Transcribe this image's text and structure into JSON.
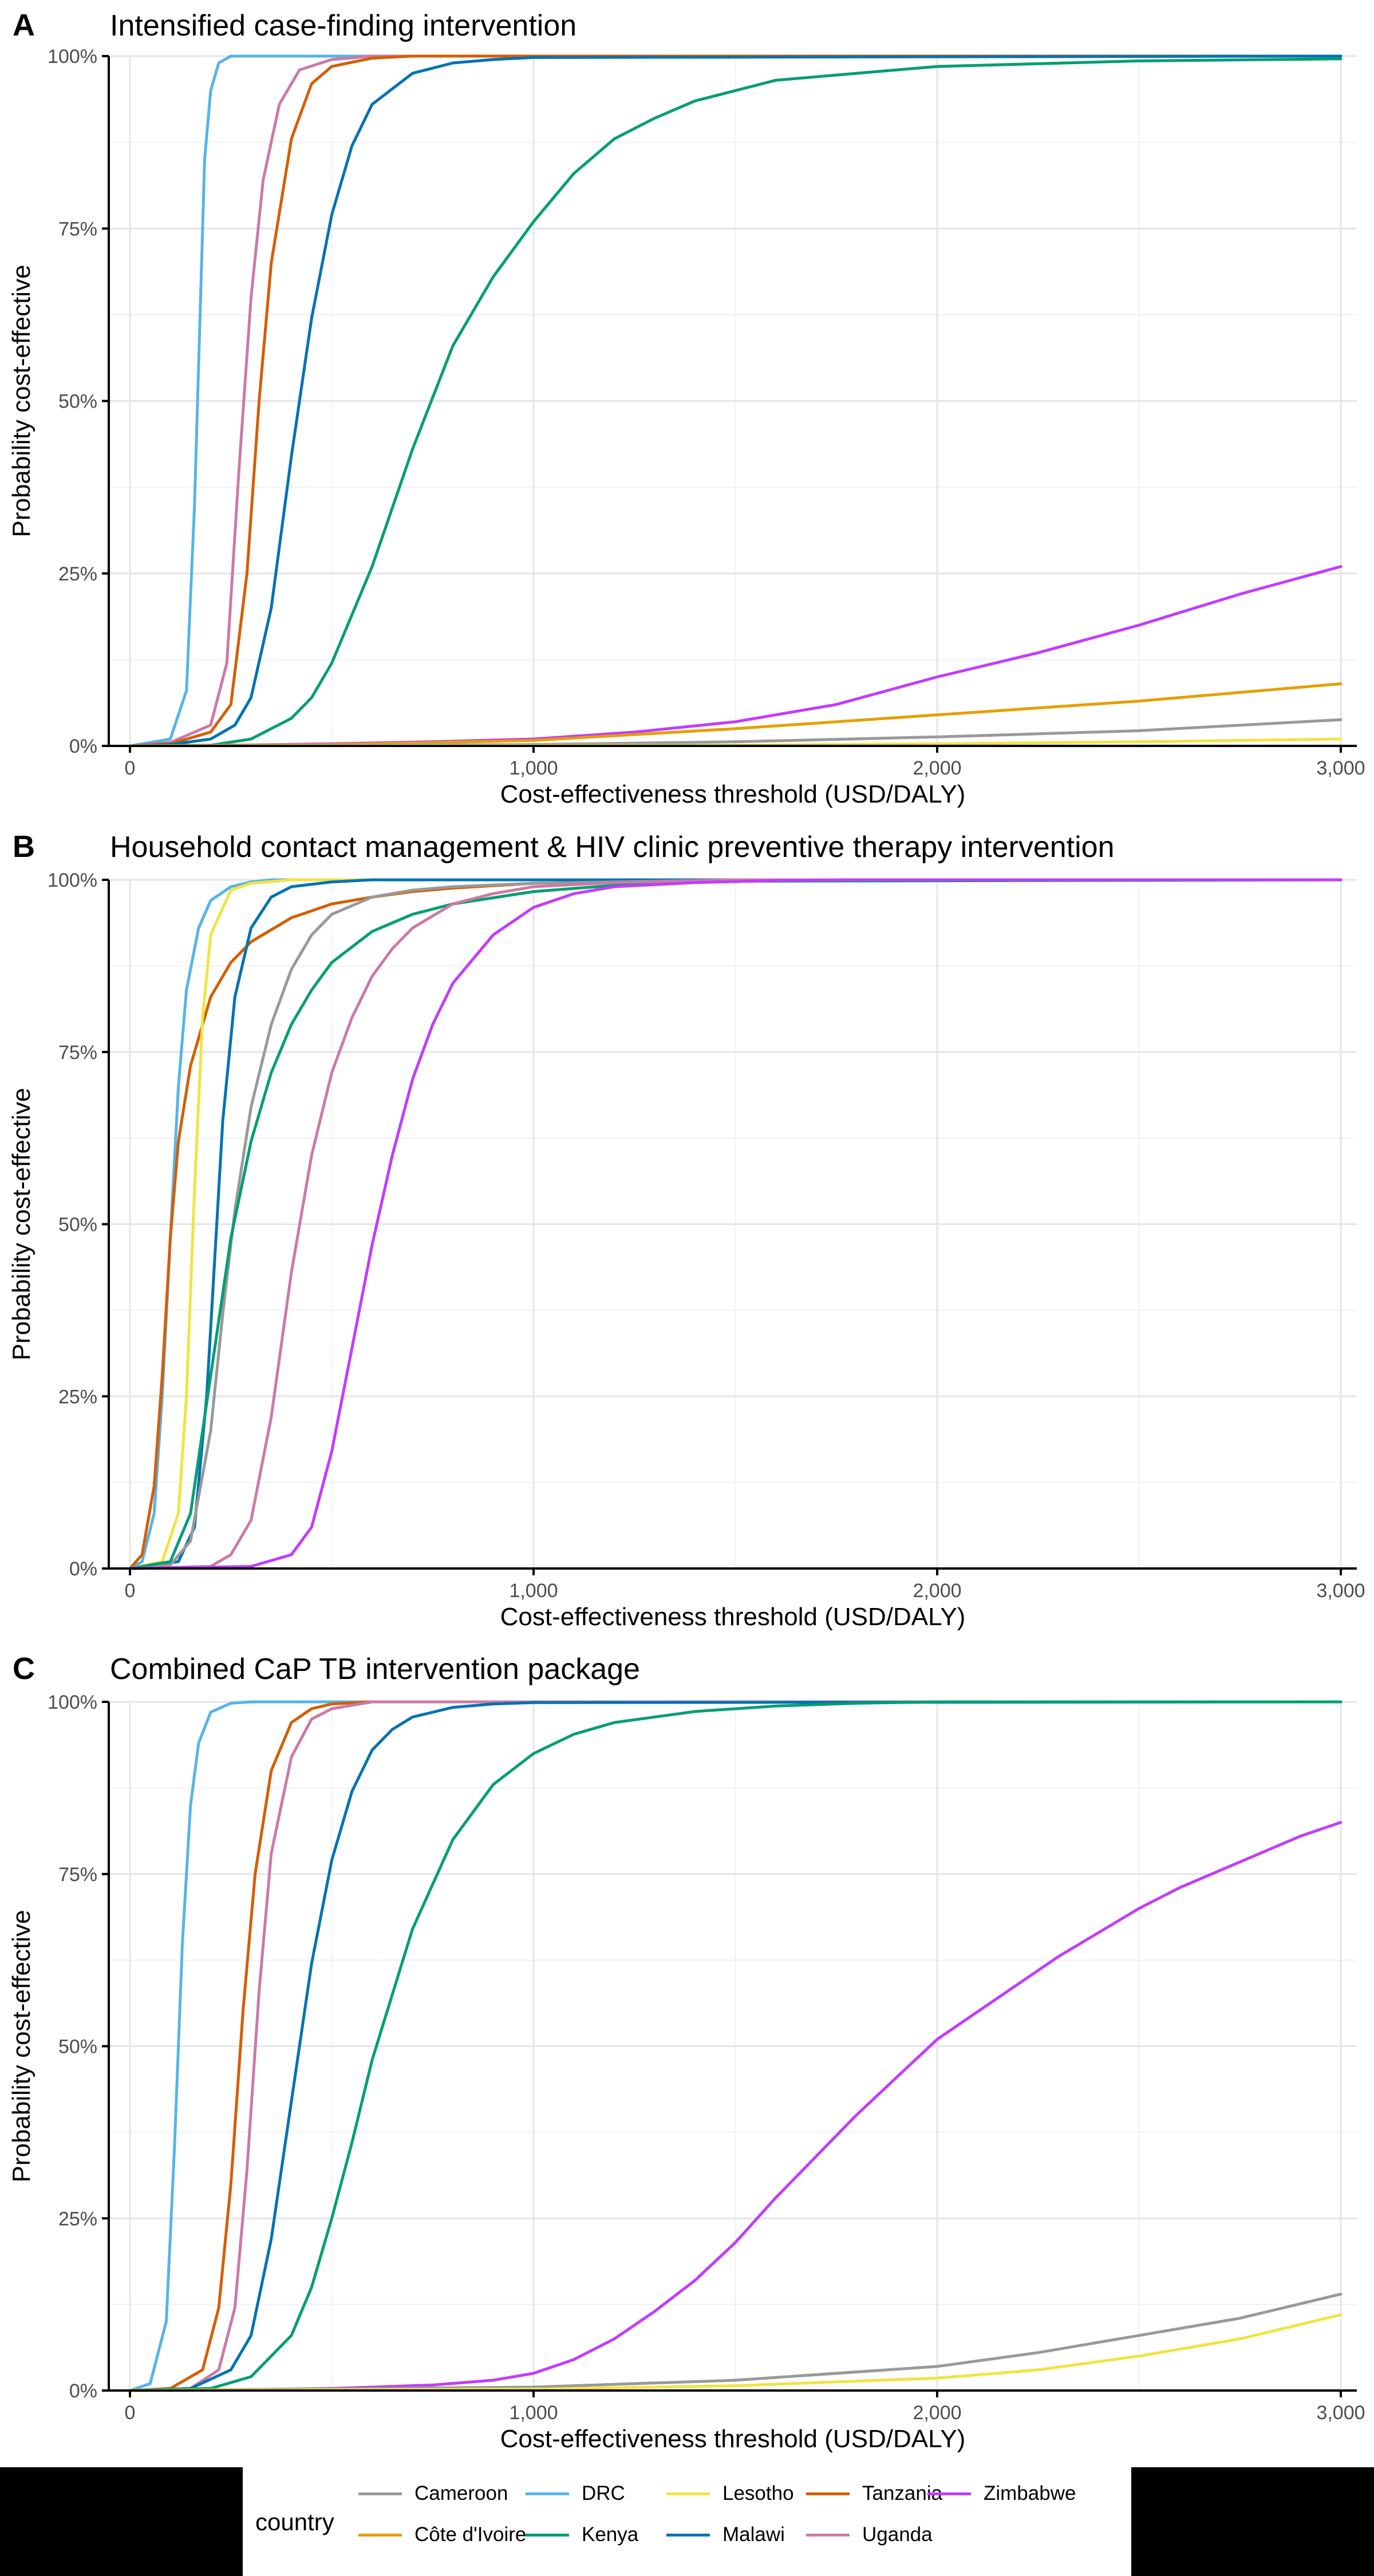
{
  "colors": {
    "Cameroon": "#999999",
    "Côte d'Ivoire": "#E69F00",
    "DRC": "#56B4E9",
    "Kenya": "#009E73",
    "Lesotho": "#F0E442",
    "Malawi": "#0072B2",
    "Tanzania": "#D55E00",
    "Uganda": "#CC79A7",
    "Zimbabwe": "#C23BFF"
  },
  "legend": {
    "title": "country",
    "entries": [
      "Cameroon",
      "Côte d'Ivoire",
      "DRC",
      "Kenya",
      "Lesotho",
      "Malawi",
      "Tanzania",
      "Uganda",
      "Zimbabwe"
    ]
  },
  "chart_data": [
    {
      "type": "line",
      "panel": "A",
      "title": "Intensified case-finding intervention",
      "xlabel": "Cost-effectiveness threshold (USD/DALY)",
      "ylabel": "Probability cost-effective",
      "xlim": [
        0,
        3000
      ],
      "ylim": [
        0,
        100
      ],
      "xticks": [
        0,
        1000,
        2000,
        3000
      ],
      "xtick_labels": [
        "0",
        "1,000",
        "2,000",
        "3,000"
      ],
      "yticks": [
        0,
        25,
        50,
        75,
        100
      ],
      "ytick_labels": [
        "0%",
        "25%",
        "50%",
        "75%",
        "100%"
      ],
      "grid": true,
      "series": [
        {
          "name": "DRC",
          "x": [
            0,
            100,
            140,
            160,
            175,
            185,
            200,
            220,
            250,
            300,
            3000
          ],
          "values": [
            0,
            1,
            8,
            35,
            65,
            85,
            95,
            99,
            100,
            100,
            100
          ]
        },
        {
          "name": "Uganda",
          "x": [
            0,
            100,
            200,
            240,
            270,
            300,
            330,
            370,
            420,
            500,
            600,
            3000
          ],
          "values": [
            0,
            0.5,
            3,
            12,
            40,
            65,
            82,
            93,
            98,
            99.5,
            100,
            100
          ]
        },
        {
          "name": "Tanzania",
          "x": [
            0,
            100,
            200,
            250,
            290,
            320,
            350,
            400,
            450,
            500,
            600,
            700,
            3000
          ],
          "values": [
            0,
            0.3,
            2,
            6,
            25,
            50,
            70,
            88,
            96,
            98.5,
            99.7,
            100,
            100
          ]
        },
        {
          "name": "Malawi",
          "x": [
            0,
            100,
            200,
            260,
            300,
            350,
            400,
            450,
            500,
            550,
            600,
            700,
            800,
            900,
            1000,
            3000
          ],
          "values": [
            0,
            0.2,
            1,
            3,
            7,
            20,
            42,
            62,
            77,
            87,
            93,
            97.5,
            99,
            99.5,
            99.8,
            100
          ]
        },
        {
          "name": "Kenya",
          "x": [
            0,
            200,
            300,
            400,
            450,
            500,
            600,
            700,
            800,
            900,
            1000,
            1100,
            1200,
            1300,
            1400,
            1500,
            1600,
            1800,
            2000,
            2500,
            3000
          ],
          "values": [
            0,
            0.1,
            1,
            4,
            7,
            12,
            26,
            43,
            58,
            68,
            76,
            83,
            88,
            91,
            93.5,
            95,
            96.5,
            97.5,
            98.5,
            99.3,
            99.6
          ]
        },
        {
          "name": "Zimbabwe",
          "x": [
            0,
            250,
            500,
            750,
            1000,
            1250,
            1500,
            1750,
            2000,
            2250,
            2500,
            2750,
            3000
          ],
          "values": [
            0,
            0.1,
            0.3,
            0.6,
            1,
            2,
            3.5,
            6,
            10,
            13.5,
            17.5,
            22,
            26
          ]
        },
        {
          "name": "Côte d'Ivoire",
          "x": [
            0,
            500,
            1000,
            1500,
            2000,
            2500,
            3000
          ],
          "values": [
            0,
            0.2,
            0.8,
            2.5,
            4.5,
            6.5,
            9
          ]
        },
        {
          "name": "Cameroon",
          "x": [
            0,
            1000,
            1500,
            2000,
            2500,
            3000
          ],
          "values": [
            0,
            0.2,
            0.6,
            1.3,
            2.2,
            3.8
          ]
        },
        {
          "name": "Lesotho",
          "x": [
            0,
            1500,
            2000,
            2500,
            3000
          ],
          "values": [
            0,
            0.1,
            0.3,
            0.6,
            1
          ]
        }
      ]
    },
    {
      "type": "line",
      "panel": "B",
      "title": "Household contact management & HIV clinic preventive therapy intervention",
      "xlabel": "Cost-effectiveness threshold (USD/DALY)",
      "ylabel": "Probability cost-effective",
      "xlim": [
        0,
        3000
      ],
      "ylim": [
        0,
        100
      ],
      "xticks": [
        0,
        1000,
        2000,
        3000
      ],
      "xtick_labels": [
        "0",
        "1,000",
        "2,000",
        "3,000"
      ],
      "yticks": [
        0,
        25,
        50,
        75,
        100
      ],
      "ytick_labels": [
        "0%",
        "25%",
        "50%",
        "75%",
        "100%"
      ],
      "grid": true,
      "series": [
        {
          "name": "DRC",
          "x": [
            0,
            30,
            60,
            80,
            100,
            120,
            140,
            170,
            200,
            250,
            300,
            350,
            3000
          ],
          "values": [
            0,
            1,
            8,
            25,
            48,
            70,
            84,
            93,
            97,
            99,
            99.7,
            100,
            100
          ]
        },
        {
          "name": "Tanzania",
          "x": [
            0,
            30,
            60,
            80,
            100,
            120,
            150,
            200,
            250,
            300,
            400,
            500,
            600,
            700,
            800,
            1000,
            1500,
            3000
          ],
          "values": [
            0,
            2,
            12,
            28,
            48,
            62,
            73,
            83,
            88,
            91,
            94.5,
            96.5,
            97.5,
            98.3,
            98.8,
            99.5,
            100,
            100
          ]
        },
        {
          "name": "Lesotho",
          "x": [
            0,
            80,
            120,
            140,
            160,
            180,
            200,
            250,
            300,
            400,
            3000
          ],
          "values": [
            0,
            1,
            8,
            25,
            55,
            80,
            92,
            98.5,
            99.5,
            100,
            100
          ]
        },
        {
          "name": "Malawi",
          "x": [
            0,
            120,
            160,
            190,
            210,
            230,
            260,
            300,
            350,
            400,
            500,
            600,
            3000
          ],
          "values": [
            0,
            1,
            6,
            25,
            45,
            65,
            83,
            93,
            97.5,
            99,
            99.7,
            100,
            100
          ]
        },
        {
          "name": "Cameroon",
          "x": [
            0,
            100,
            150,
            200,
            230,
            260,
            300,
            350,
            400,
            450,
            500,
            600,
            700,
            800,
            1000,
            1500,
            3000
          ],
          "values": [
            0,
            0.5,
            4,
            20,
            37,
            52,
            67,
            79,
            87,
            92,
            95,
            97.5,
            98.5,
            99,
            99.5,
            100,
            100
          ]
        },
        {
          "name": "Kenya",
          "x": [
            0,
            100,
            150,
            200,
            250,
            300,
            350,
            400,
            450,
            500,
            600,
            700,
            800,
            1000,
            1200,
            1500,
            3000
          ],
          "values": [
            0,
            1,
            8,
            28,
            48,
            62,
            72,
            79,
            84,
            88,
            92.5,
            95,
            96.5,
            98.3,
            99.2,
            99.8,
            100
          ]
        },
        {
          "name": "Uganda",
          "x": [
            0,
            200,
            250,
            300,
            350,
            400,
            450,
            500,
            550,
            600,
            650,
            700,
            800,
            900,
            1000,
            1200,
            1500,
            3000
          ],
          "values": [
            0,
            0.3,
            2,
            7,
            22,
            43,
            60,
            72,
            80,
            86,
            90,
            93,
            96.5,
            98,
            99,
            99.6,
            100,
            100
          ]
        },
        {
          "name": "Zimbabwe",
          "x": [
            0,
            300,
            400,
            450,
            500,
            550,
            600,
            650,
            700,
            750,
            800,
            900,
            1000,
            1100,
            1200,
            1400,
            1600,
            1800,
            2000,
            3000
          ],
          "values": [
            0,
            0.3,
            2,
            6,
            17,
            32,
            47,
            60,
            71,
            79,
            85,
            92,
            96,
            98,
            99,
            99.6,
            99.9,
            100,
            100,
            100
          ]
        }
      ]
    },
    {
      "type": "line",
      "panel": "C",
      "title": "Combined CaP TB intervention package",
      "xlabel": "Cost-effectiveness threshold (USD/DALY)",
      "ylabel": "Probability cost-effective",
      "xlim": [
        0,
        3000
      ],
      "ylim": [
        0,
        100
      ],
      "xticks": [
        0,
        1000,
        2000,
        3000
      ],
      "xtick_labels": [
        "0",
        "1,000",
        "2,000",
        "3,000"
      ],
      "yticks": [
        0,
        25,
        50,
        75,
        100
      ],
      "ytick_labels": [
        "0%",
        "25%",
        "50%",
        "75%",
        "100%"
      ],
      "grid": true,
      "series": [
        {
          "name": "DRC",
          "x": [
            0,
            50,
            90,
            110,
            130,
            150,
            170,
            200,
            250,
            300,
            3000
          ],
          "values": [
            0,
            1,
            10,
            35,
            65,
            85,
            94,
            98.5,
            99.8,
            100,
            100
          ]
        },
        {
          "name": "Tanzania",
          "x": [
            0,
            100,
            180,
            220,
            250,
            280,
            310,
            350,
            400,
            450,
            500,
            600,
            3000
          ],
          "values": [
            0,
            0.3,
            3,
            12,
            30,
            55,
            75,
            90,
            97,
            99,
            99.7,
            100,
            100
          ]
        },
        {
          "name": "Uganda",
          "x": [
            0,
            150,
            220,
            260,
            290,
            320,
            350,
            400,
            450,
            500,
            600,
            3000
          ],
          "values": [
            0,
            0.3,
            3,
            12,
            32,
            58,
            78,
            92,
            97.5,
            99,
            100,
            100
          ]
        },
        {
          "name": "Malawi",
          "x": [
            0,
            150,
            250,
            300,
            350,
            400,
            450,
            500,
            550,
            600,
            650,
            700,
            800,
            900,
            1000,
            3000
          ],
          "values": [
            0,
            0.3,
            3,
            8,
            22,
            42,
            62,
            77,
            87,
            93,
            96,
            97.8,
            99.2,
            99.7,
            99.9,
            100
          ]
        },
        {
          "name": "Kenya",
          "x": [
            0,
            200,
            300,
            400,
            450,
            500,
            550,
            600,
            700,
            800,
            900,
            1000,
            1100,
            1200,
            1400,
            1600,
            1800,
            2000,
            3000
          ],
          "values": [
            0,
            0.3,
            2,
            8,
            15,
            25,
            36,
            48,
            67,
            80,
            88,
            92.5,
            95.3,
            97,
            98.6,
            99.4,
            99.8,
            100,
            100
          ]
        },
        {
          "name": "Zimbabwe",
          "x": [
            0,
            250,
            500,
            750,
            900,
            1000,
            1100,
            1200,
            1300,
            1400,
            1500,
            1600,
            1700,
            1800,
            1900,
            2000,
            2100,
            2200,
            2300,
            2400,
            2500,
            2600,
            2700,
            2800,
            2900,
            3000
          ],
          "values": [
            0,
            0.1,
            0.3,
            0.8,
            1.5,
            2.5,
            4.5,
            7.5,
            11.5,
            16,
            21.5,
            28,
            34,
            40,
            45.5,
            51,
            55,
            59,
            63,
            66.5,
            70,
            73,
            75.5,
            78,
            80.5,
            82.5
          ]
        },
        {
          "name": "Cameroon",
          "x": [
            0,
            1000,
            1500,
            2000,
            2250,
            2500,
            2750,
            3000
          ],
          "values": [
            0,
            0.5,
            1.5,
            3.5,
            5.5,
            8,
            10.5,
            14
          ]
        },
        {
          "name": "Lesotho",
          "x": [
            0,
            1000,
            1500,
            2000,
            2250,
            2500,
            2750,
            3000
          ],
          "values": [
            0,
            0.2,
            0.7,
            1.8,
            3,
            5,
            7.5,
            11
          ]
        }
      ]
    }
  ]
}
